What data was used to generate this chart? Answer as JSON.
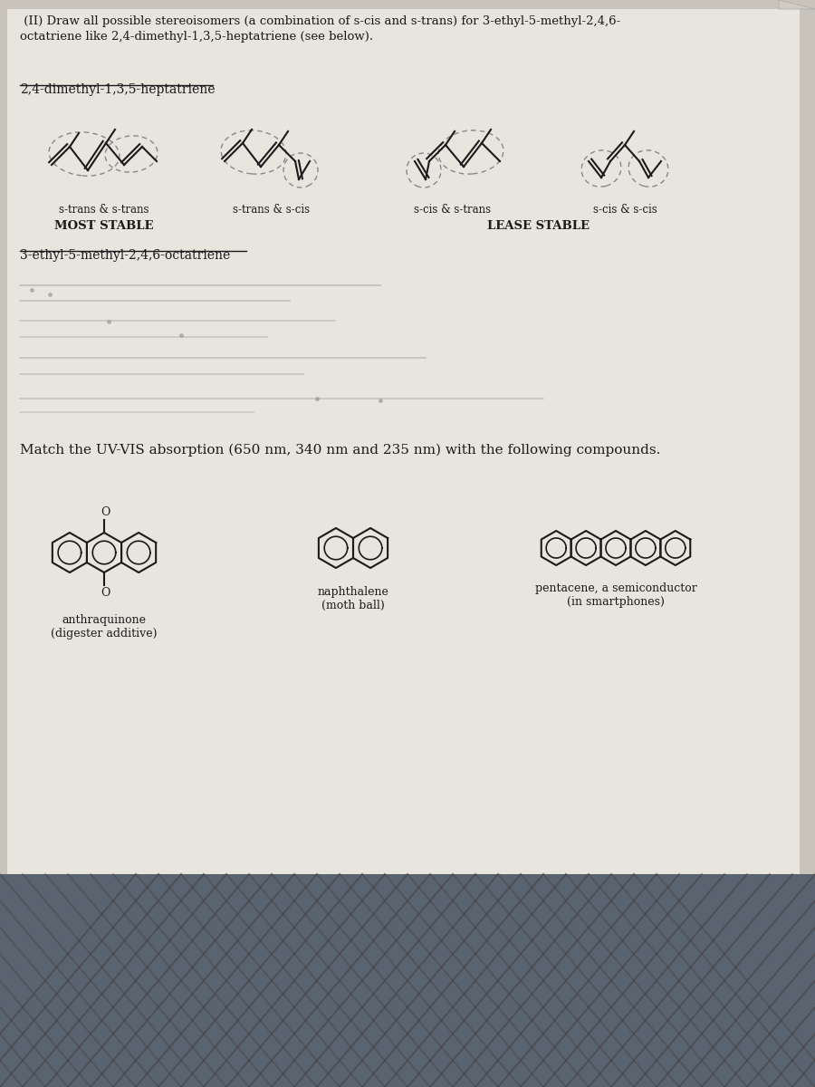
{
  "title_text": " (II) Draw all possible stereoisomers (a combination of s-cis and s-trans) for 3-ethyl-5-methyl-2,4,6-\noctatriene like 2,4-dimethyl-1,3,5-heptatriene (see below).",
  "compound1_title": "2,4-dimethyl-1,3,5-heptatriene",
  "compound2_title": "3-ethyl-5-methyl-2,4,6-octatriene",
  "labels": [
    "s-trans & s-trans",
    "s-trans & s-cis",
    "s-cis & s-trans",
    "s-cis & s-cis"
  ],
  "stability_left": "MOST STABLE",
  "stability_right": "LEASE STABLE",
  "uvvis_title": "Match the UV-VIS absorption (650 nm, 340 nm and 235 nm) with the following compounds.",
  "mol1_name": "anthraquinone\n(digester additive)",
  "mol2_name": "naphthalene\n(moth ball)",
  "mol3_name": "pentacene, a semiconductor\n(in smartphones)",
  "paper_color": "#e8e5df",
  "bg_gray": "#c8c4bc",
  "bg_bottom": "#5a6470",
  "text_color": "#1a1a1a",
  "dashed_color": "#888888",
  "fold_color": "#d0cbc3"
}
